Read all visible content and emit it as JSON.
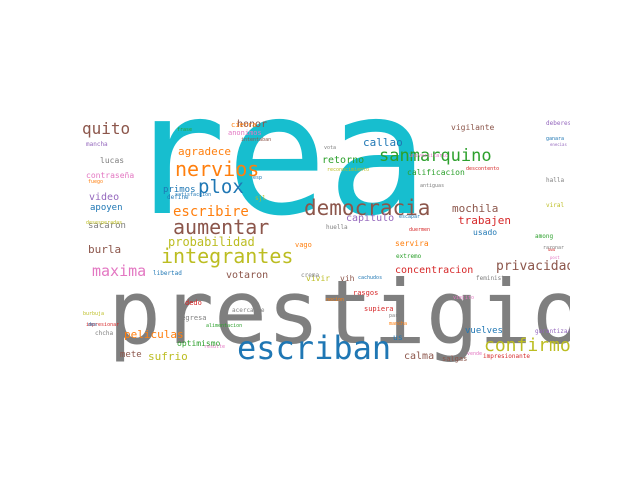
{
  "words": [
    {
      "text": "rea",
      "color": "#17becf"
    },
    {
      "text": "prestigio",
      "color": "#7f7f7f"
    },
    {
      "text": "escriban",
      "color": "#1f77b4"
    },
    {
      "text": "democracia",
      "color": "#8c564b"
    },
    {
      "text": "integrantes",
      "color": "#bcbd22"
    },
    {
      "text": "aumentar",
      "color": "#8c564b"
    },
    {
      "text": "nervios",
      "color": "#ff7f0e"
    },
    {
      "text": "confirmo",
      "color": "#bcbd22"
    },
    {
      "text": "sanmarquino",
      "color": "#2ca02c"
    },
    {
      "text": "plox",
      "color": "#1f77b4"
    },
    {
      "text": "escribire",
      "color": "#ff7f0e"
    },
    {
      "text": "quito",
      "color": "#8c564b"
    },
    {
      "text": "maxima",
      "color": "#e377c2"
    },
    {
      "text": "probabilidad",
      "color": "#bcbd22"
    },
    {
      "text": "agradece",
      "color": "#ff7f0e"
    },
    {
      "text": "privacidad",
      "color": "#8c564b"
    },
    {
      "text": "peliculas",
      "color": "#ff7f0e"
    },
    {
      "text": "mochila",
      "color": "#8c564b"
    },
    {
      "text": "trabajen",
      "color": "#d62728"
    },
    {
      "text": "callao",
      "color": "#1f77b4"
    },
    {
      "text": "concentracion",
      "color": "#d62728"
    },
    {
      "text": "votaron",
      "color": "#8c564b"
    },
    {
      "text": "sufrio",
      "color": "#bcbd22"
    },
    {
      "text": "calma",
      "color": "#8c564b"
    },
    {
      "text": "retorno",
      "color": "#2ca02c"
    },
    {
      "text": "capitulo",
      "color": "#9467bd"
    },
    {
      "text": "video",
      "color": "#9467bd"
    },
    {
      "text": "burla",
      "color": "#8c564b"
    },
    {
      "text": "honor",
      "color": "#8c564b"
    },
    {
      "text": "primos",
      "color": "#1f77b4"
    },
    {
      "text": "vivir",
      "color": "#bcbd22"
    },
    {
      "text": "mete",
      "color": "#8c564b"
    },
    {
      "text": "vuelves",
      "color": "#1f77b4"
    },
    {
      "text": "apoyen",
      "color": "#1f77b4"
    },
    {
      "text": "sacaron",
      "color": "#7f7f7f"
    },
    {
      "text": "optimismo",
      "color": "#2ca02c"
    },
    {
      "text": "lucas",
      "color": "#7f7f7f"
    },
    {
      "text": "contraseña",
      "color": "#e377c2"
    },
    {
      "text": "calificacion",
      "color": "#2ca02c"
    },
    {
      "text": "usado",
      "color": "#1f77b4"
    },
    {
      "text": "vigilante",
      "color": "#8c564b"
    },
    {
      "text": "servira",
      "color": "#ff7f0e"
    },
    {
      "text": "vih",
      "color": "#8c564b"
    },
    {
      "text": "us",
      "color": "#1f77b4"
    },
    {
      "text": "salgas",
      "color": "#8c564b"
    },
    {
      "text": "supiera",
      "color": "#d62728"
    },
    {
      "text": "rasgos",
      "color": "#d62728"
    },
    {
      "text": "regresa",
      "color": "#7f7f7f"
    },
    {
      "text": "dedo",
      "color": "#d62728"
    },
    {
      "text": "cierra",
      "color": "#ff7f0e"
    },
    {
      "text": "anonimos",
      "color": "#e377c2"
    },
    {
      "text": "vago",
      "color": "#ff7f0e"
    },
    {
      "text": "define",
      "color": "#1f77b4"
    },
    {
      "text": "huella",
      "color": "#7f7f7f"
    },
    {
      "text": "feminista",
      "color": "#7f7f7f"
    },
    {
      "text": "extremo",
      "color": "#2ca02c"
    },
    {
      "text": "among",
      "color": "#2ca02c"
    },
    {
      "text": "viral",
      "color": "#bcbd22"
    },
    {
      "text": "halla",
      "color": "#7f7f7f"
    },
    {
      "text": "deberes",
      "color": "#9467bd"
    },
    {
      "text": "crema",
      "color": "#7f7f7f"
    },
    {
      "text": "chcha",
      "color": "#7f7f7f"
    },
    {
      "text": "mancha",
      "color": "#9467bd"
    },
    {
      "text": "libertad",
      "color": "#1f77b4"
    },
    {
      "text": "acercarse",
      "color": "#7f7f7f"
    },
    {
      "text": "impresionante",
      "color": "#d62728"
    },
    {
      "text": "garantizar",
      "color": "#9467bd"
    },
    {
      "text": "desesperadas",
      "color": "#bcbd22"
    },
    {
      "text": "sjl",
      "color": "#bcbd22"
    },
    {
      "text": "satisfaccion",
      "color": "#1f77b4"
    },
    {
      "text": "intentaban",
      "color": "#8c564b"
    },
    {
      "text": "reconocimiento",
      "color": "#bcbd22"
    },
    {
      "text": "universitario",
      "color": "#e377c2"
    },
    {
      "text": "antiguas",
      "color": "#7f7f7f"
    },
    {
      "text": "descontento",
      "color": "#d62728"
    },
    {
      "text": "escapar",
      "color": "#1f77b4"
    },
    {
      "text": "duermen",
      "color": "#d62728"
    },
    {
      "text": "alimentacion",
      "color": "#2ca02c"
    },
    {
      "text": "razonar",
      "color": "#7f7f7f"
    },
    {
      "text": "ganara",
      "color": "#1f77b4"
    },
    {
      "text": "frase",
      "color": "#2ca02c"
    },
    {
      "text": "vota",
      "color": "#7f7f7f"
    },
    {
      "text": "fuego",
      "color": "#ff7f0e"
    },
    {
      "text": "impresionar",
      "color": "#d62728"
    },
    {
      "text": "burbuja",
      "color": "#bcbd22"
    },
    {
      "text": "des",
      "color": "#1f77b4"
    },
    {
      "text": "viejito",
      "color": "#e377c2"
    },
    {
      "text": "nocion",
      "color": "#ff7f0e"
    },
    {
      "text": "parta",
      "color": "#7f7f7f"
    },
    {
      "text": "vende",
      "color": "#e377c2"
    },
    {
      "text": "cachudos",
      "color": "#1f77b4"
    },
    {
      "text": "resulte",
      "color": "#e377c2"
    },
    {
      "text": "anal",
      "color": "#7f7f7f"
    },
    {
      "text": "mancha",
      "color": "#ff7f0e"
    },
    {
      "text": "esp",
      "color": "#1f77b4"
    },
    {
      "text": "enecias",
      "color": "#9467bd"
    },
    {
      "text": "uwu",
      "color": "#d62728"
    },
    {
      "text": "post",
      "color": "#e377c2"
    }
  ]
}
